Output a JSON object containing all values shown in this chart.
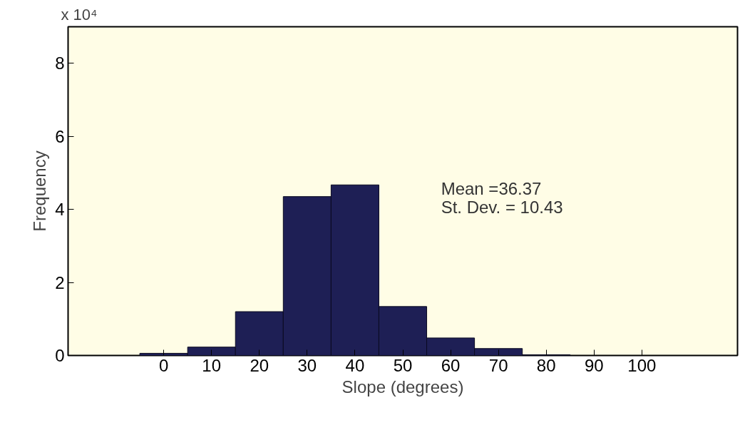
{
  "chart_data": {
    "type": "histogram",
    "xlabel": "Slope (degrees)",
    "ylabel": "Frequency",
    "bins": [
      -5,
      5,
      15,
      25,
      35,
      45,
      55,
      65,
      75,
      85
    ],
    "values": [
      0.06,
      0.23,
      1.2,
      4.35,
      4.67,
      1.34,
      0.48,
      0.19,
      0.02
    ],
    "color": "#1e1f55",
    "xlim": [
      -20,
      120
    ],
    "xticks": [
      0,
      10,
      20,
      30,
      40,
      50,
      60,
      70,
      80,
      90,
      100
    ],
    "ylim": [
      0,
      9
    ],
    "yticks": [
      0,
      2,
      4,
      6,
      8
    ],
    "annotations": [
      "x 10⁴",
      "Mean =36.37",
      "St. Dev. = 10.43"
    ],
    "grid": false
  }
}
